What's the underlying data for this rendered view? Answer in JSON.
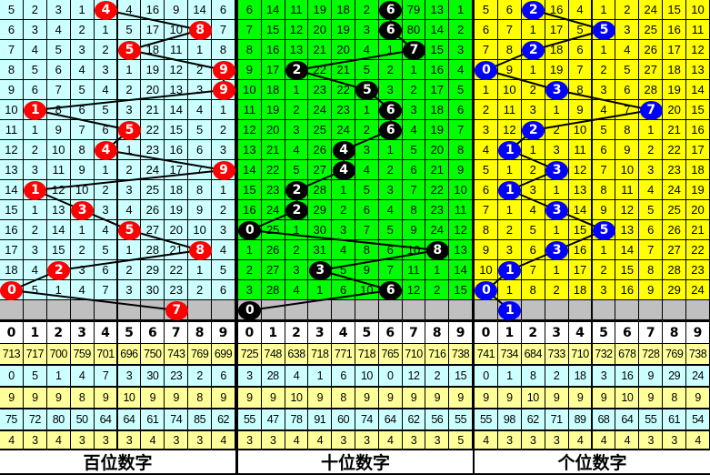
{
  "panels": [
    {
      "title": "百位数字",
      "ball_color": "#ff0000",
      "grid_bg": "#ccffff",
      "digits": [
        "0",
        "1",
        "2",
        "3",
        "4",
        "5",
        "6",
        "7",
        "8",
        "9"
      ],
      "rows": [
        {
          "cells": [
            5,
            2,
            3,
            1,
            "",
            4,
            16,
            9,
            14,
            6
          ],
          "ball": 4
        },
        {
          "cells": [
            6,
            3,
            4,
            2,
            1,
            5,
            17,
            10,
            "",
            7
          ],
          "ball": 8
        },
        {
          "cells": [
            7,
            4,
            5,
            3,
            2,
            "",
            18,
            11,
            1,
            8
          ],
          "ball": 5
        },
        {
          "cells": [
            8,
            5,
            6,
            4,
            3,
            1,
            19,
            12,
            2,
            ""
          ],
          "ball": 9
        },
        {
          "cells": [
            9,
            6,
            7,
            5,
            4,
            2,
            20,
            13,
            3,
            ""
          ],
          "ball": 9
        },
        {
          "cells": [
            10,
            "",
            8,
            6,
            5,
            3,
            21,
            14,
            4,
            1
          ],
          "ball": 1
        },
        {
          "cells": [
            11,
            1,
            9,
            7,
            6,
            "",
            22,
            15,
            5,
            2
          ],
          "ball": 5
        },
        {
          "cells": [
            12,
            2,
            10,
            8,
            "",
            1,
            23,
            16,
            6,
            3
          ],
          "ball": 4
        },
        {
          "cells": [
            13,
            3,
            11,
            9,
            1,
            2,
            24,
            17,
            7,
            ""
          ],
          "ball": 9
        },
        {
          "cells": [
            14,
            "",
            12,
            10,
            2,
            3,
            25,
            18,
            8,
            1
          ],
          "ball": 1
        },
        {
          "cells": [
            15,
            1,
            13,
            "",
            3,
            4,
            26,
            19,
            9,
            2
          ],
          "ball": 3
        },
        {
          "cells": [
            16,
            2,
            14,
            1,
            4,
            "",
            27,
            20,
            10,
            3
          ],
          "ball": 5
        },
        {
          "cells": [
            17,
            3,
            15,
            2,
            5,
            1,
            28,
            21,
            "",
            4
          ],
          "ball": 8
        },
        {
          "cells": [
            18,
            4,
            "",
            3,
            6,
            2,
            29,
            22,
            1,
            5
          ],
          "ball": 2
        },
        {
          "cells": [
            "",
            5,
            1,
            4,
            7,
            3,
            30,
            23,
            2,
            6
          ],
          "ball": 0
        }
      ],
      "current_ball": 7,
      "stats": [
        [
          713,
          717,
          700,
          759,
          701,
          696,
          750,
          743,
          769,
          699
        ],
        [
          0,
          5,
          1,
          4,
          7,
          3,
          30,
          23,
          2,
          6
        ],
        [
          9,
          9,
          9,
          8,
          9,
          10,
          9,
          9,
          8,
          9
        ],
        [
          75,
          72,
          80,
          50,
          64,
          64,
          61,
          74,
          85,
          62
        ],
        [
          4,
          3,
          4,
          3,
          3,
          3,
          4,
          3,
          3,
          4
        ]
      ]
    },
    {
      "title": "十位数字",
      "ball_color": "#000000",
      "grid_bg": "#00ff00",
      "digits": [
        "0",
        "1",
        "2",
        "3",
        "4",
        "5",
        "6",
        "7",
        "8",
        "9"
      ],
      "rows": [
        {
          "cells": [
            6,
            14,
            11,
            19,
            18,
            2,
            "",
            79,
            13,
            1
          ],
          "ball": 6
        },
        {
          "cells": [
            7,
            15,
            12,
            20,
            19,
            3,
            "",
            80,
            14,
            2
          ],
          "ball": 6
        },
        {
          "cells": [
            8,
            16,
            13,
            21,
            20,
            4,
            1,
            "",
            15,
            3
          ],
          "ball": 7
        },
        {
          "cells": [
            9,
            17,
            "",
            22,
            21,
            5,
            2,
            1,
            16,
            4
          ],
          "ball": 2
        },
        {
          "cells": [
            10,
            18,
            1,
            23,
            22,
            "",
            3,
            2,
            17,
            5
          ],
          "ball": 5
        },
        {
          "cells": [
            11,
            19,
            2,
            24,
            23,
            1,
            "",
            3,
            18,
            6
          ],
          "ball": 6
        },
        {
          "cells": [
            12,
            20,
            3,
            25,
            24,
            2,
            "",
            4,
            19,
            7
          ],
          "ball": 6
        },
        {
          "cells": [
            13,
            21,
            4,
            26,
            "",
            3,
            1,
            5,
            20,
            8
          ],
          "ball": 4
        },
        {
          "cells": [
            14,
            22,
            5,
            27,
            "",
            4,
            2,
            6,
            21,
            9
          ],
          "ball": 4
        },
        {
          "cells": [
            15,
            23,
            "",
            28,
            1,
            5,
            3,
            7,
            22,
            10
          ],
          "ball": 2
        },
        {
          "cells": [
            16,
            24,
            "",
            29,
            2,
            6,
            4,
            8,
            23,
            11
          ],
          "ball": 2
        },
        {
          "cells": [
            "",
            25,
            1,
            30,
            3,
            7,
            5,
            9,
            24,
            12
          ],
          "ball": 0
        },
        {
          "cells": [
            1,
            26,
            2,
            31,
            4,
            8,
            6,
            10,
            "",
            13
          ],
          "ball": 8
        },
        {
          "cells": [
            2,
            27,
            3,
            "",
            5,
            9,
            7,
            11,
            1,
            14
          ],
          "ball": 3
        },
        {
          "cells": [
            3,
            28,
            4,
            1,
            6,
            10,
            "",
            12,
            2,
            15
          ],
          "ball": 6
        }
      ],
      "current_ball": 0,
      "stats": [
        [
          725,
          748,
          638,
          718,
          771,
          718,
          765,
          710,
          716,
          738
        ],
        [
          3,
          28,
          4,
          1,
          6,
          10,
          0,
          12,
          2,
          15
        ],
        [
          9,
          9,
          10,
          9,
          8,
          9,
          9,
          9,
          9,
          9
        ],
        [
          55,
          47,
          78,
          91,
          60,
          74,
          64,
          62,
          56,
          55
        ],
        [
          3,
          3,
          4,
          4,
          3,
          3,
          4,
          3,
          3,
          5
        ]
      ]
    },
    {
      "title": "个位数字",
      "ball_color": "#0000ff",
      "grid_bg": "#ffff00",
      "digits": [
        "0",
        "1",
        "2",
        "3",
        "4",
        "5",
        "6",
        "7",
        "8",
        "9"
      ],
      "rows": [
        {
          "cells": [
            5,
            6,
            "",
            16,
            4,
            1,
            2,
            24,
            15,
            10
          ],
          "ball": 2
        },
        {
          "cells": [
            6,
            7,
            1,
            17,
            5,
            "",
            3,
            25,
            16,
            11
          ],
          "ball": 5
        },
        {
          "cells": [
            7,
            8,
            "",
            18,
            6,
            1,
            4,
            26,
            17,
            12
          ],
          "ball": 2
        },
        {
          "cells": [
            "",
            9,
            1,
            19,
            7,
            2,
            5,
            27,
            18,
            13
          ],
          "ball": 0
        },
        {
          "cells": [
            1,
            10,
            2,
            "",
            8,
            3,
            6,
            28,
            19,
            14
          ],
          "ball": 3
        },
        {
          "cells": [
            2,
            11,
            3,
            1,
            9,
            4,
            7,
            "",
            20,
            15
          ],
          "ball": 7
        },
        {
          "cells": [
            3,
            12,
            "",
            2,
            10,
            5,
            8,
            1,
            21,
            16
          ],
          "ball": 2
        },
        {
          "cells": [
            4,
            "",
            1,
            3,
            11,
            6,
            9,
            2,
            22,
            17
          ],
          "ball": 1
        },
        {
          "cells": [
            5,
            1,
            2,
            "",
            12,
            7,
            10,
            3,
            23,
            18
          ],
          "ball": 3
        },
        {
          "cells": [
            6,
            "",
            3,
            1,
            13,
            8,
            11,
            4,
            24,
            19
          ],
          "ball": 1
        },
        {
          "cells": [
            7,
            1,
            4,
            "",
            14,
            9,
            12,
            5,
            25,
            20
          ],
          "ball": 3
        },
        {
          "cells": [
            8,
            2,
            5,
            1,
            15,
            "",
            13,
            6,
            26,
            21
          ],
          "ball": 5
        },
        {
          "cells": [
            9,
            3,
            6,
            "",
            16,
            1,
            14,
            7,
            27,
            22
          ],
          "ball": 3
        },
        {
          "cells": [
            10,
            "",
            7,
            1,
            17,
            2,
            15,
            8,
            28,
            23
          ],
          "ball": 1
        },
        {
          "cells": [
            "",
            1,
            8,
            2,
            18,
            3,
            16,
            9,
            29,
            24
          ],
          "ball": 0
        }
      ],
      "current_ball": 1,
      "stats": [
        [
          741,
          734,
          684,
          733,
          710,
          732,
          678,
          728,
          769,
          738
        ],
        [
          0,
          1,
          8,
          2,
          18,
          3,
          16,
          9,
          29,
          24
        ],
        [
          9,
          9,
          10,
          9,
          9,
          9,
          10,
          9,
          8,
          9
        ],
        [
          55,
          98,
          62,
          71,
          89,
          68,
          64,
          55,
          61,
          54
        ],
        [
          4,
          3,
          3,
          3,
          4,
          4,
          4,
          3,
          3,
          4
        ]
      ],
      "_": null
    }
  ],
  "colors": {
    "current_row_bg": "#c0c0c0",
    "stat_yellow": "#ffff99",
    "stat_cyan": "#ccffff",
    "line": "#000000"
  }
}
